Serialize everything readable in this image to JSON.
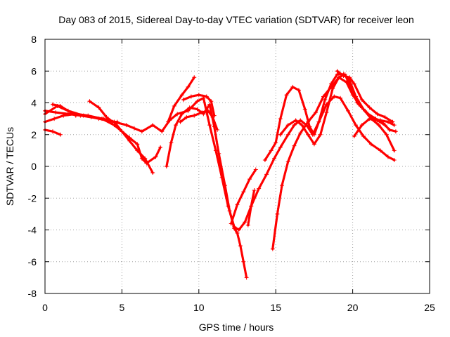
{
  "chart_data": {
    "type": "scatter",
    "title": "Day 083 of 2015, Sidereal Day-to-day VTEC variation (SDTVAR) for receiver leon",
    "xlabel": "GPS time / hours",
    "ylabel": "SDTVAR / TECUs",
    "xlim": [
      0,
      25
    ],
    "ylim": [
      -8,
      8
    ],
    "xticks": [
      "0",
      "5",
      "10",
      "15",
      "20",
      "25"
    ],
    "yticks": [
      "-8",
      "-6",
      "-4",
      "-2",
      "0",
      "2",
      "4",
      "6",
      "8"
    ],
    "grid": true,
    "marker": "plus",
    "color": "#ff0000",
    "series": [
      {
        "points": [
          [
            0.0,
            3.3
          ],
          [
            0.8,
            3.8
          ],
          [
            1.5,
            3.5
          ],
          [
            2.5,
            3.2
          ],
          [
            3.5,
            3.0
          ],
          [
            4.5,
            2.8
          ],
          [
            5.3,
            2.6
          ],
          [
            5.8,
            2.4
          ],
          [
            6.3,
            2.2
          ],
          [
            7.0,
            2.6
          ],
          [
            7.6,
            2.2
          ],
          [
            8.1,
            2.9
          ],
          [
            8.6,
            3.3
          ],
          [
            9.3,
            3.5
          ],
          [
            9.9,
            4.1
          ],
          [
            10.3,
            4.3
          ],
          [
            10.7,
            2.6
          ],
          [
            11.1,
            1.0
          ],
          [
            11.5,
            -0.7
          ],
          [
            11.9,
            -2.5
          ],
          [
            12.3,
            -3.8
          ],
          [
            12.6,
            -4.0
          ],
          [
            13.0,
            -3.5
          ],
          [
            13.4,
            -2.5
          ],
          [
            13.9,
            -1.4
          ],
          [
            14.4,
            -0.5
          ],
          [
            14.9,
            0.5
          ],
          [
            15.3,
            1.2
          ],
          [
            15.8,
            2.0
          ],
          [
            16.2,
            2.6
          ],
          [
            16.6,
            2.9
          ],
          [
            17.0,
            2.6
          ],
          [
            17.4,
            2.0
          ],
          [
            17.8,
            2.8
          ],
          [
            18.3,
            3.9
          ],
          [
            18.8,
            4.4
          ],
          [
            19.2,
            4.3
          ],
          [
            19.7,
            3.5
          ],
          [
            20.2,
            2.6
          ],
          [
            20.7,
            1.9
          ],
          [
            21.2,
            1.4
          ],
          [
            21.8,
            1.0
          ],
          [
            22.3,
            0.6
          ],
          [
            22.7,
            0.4
          ]
        ]
      },
      {
        "points": [
          [
            0.0,
            2.8
          ],
          [
            0.6,
            3.0
          ],
          [
            1.2,
            3.2
          ],
          [
            2.0,
            3.3
          ],
          [
            2.8,
            3.2
          ],
          [
            3.7,
            3.0
          ],
          [
            4.5,
            2.6
          ],
          [
            5.0,
            2.2
          ],
          [
            5.5,
            1.6
          ],
          [
            6.0,
            1.0
          ],
          [
            6.5,
            0.5
          ],
          [
            7.0,
            -0.4
          ]
        ]
      },
      {
        "points": [
          [
            0.0,
            3.5
          ],
          [
            0.7,
            3.4
          ],
          [
            1.5,
            3.3
          ],
          [
            2.3,
            3.2
          ],
          [
            3.0,
            3.1
          ],
          [
            3.8,
            3.0
          ],
          [
            4.5,
            2.8
          ],
          [
            5.0,
            2.2
          ],
          [
            5.5,
            1.8
          ],
          [
            6.0,
            1.4
          ],
          [
            6.3,
            0.5
          ],
          [
            6.6,
            0.2
          ],
          [
            7.2,
            0.6
          ],
          [
            7.5,
            1.2
          ]
        ]
      },
      {
        "points": [
          [
            2.9,
            4.1
          ],
          [
            3.5,
            3.7
          ],
          [
            4.0,
            3.1
          ],
          [
            4.4,
            2.8
          ],
          [
            4.7,
            2.8
          ]
        ]
      },
      {
        "points": [
          [
            8.0,
            2.8
          ],
          [
            8.4,
            3.8
          ],
          [
            8.9,
            4.5
          ],
          [
            9.3,
            5.0
          ],
          [
            9.7,
            5.6
          ]
        ]
      },
      {
        "points": [
          [
            7.9,
            0.0
          ],
          [
            8.2,
            1.5
          ],
          [
            8.5,
            2.6
          ],
          [
            8.9,
            3.3
          ],
          [
            9.4,
            3.7
          ],
          [
            9.9,
            3.6
          ],
          [
            10.3,
            3.3
          ],
          [
            10.7,
            3.9
          ],
          [
            11.0,
            2.5
          ],
          [
            11.3,
            0.8
          ],
          [
            11.7,
            -1.2
          ],
          [
            12.0,
            -2.8
          ],
          [
            12.3,
            -3.9
          ],
          [
            12.5,
            -4.2
          ],
          [
            12.7,
            -5.0
          ],
          [
            12.9,
            -6.0
          ],
          [
            13.1,
            -7.0
          ]
        ]
      },
      {
        "points": [
          [
            8.8,
            2.8
          ],
          [
            9.2,
            3.1
          ],
          [
            9.7,
            3.2
          ],
          [
            10.2,
            3.4
          ],
          [
            10.6,
            3.5
          ],
          [
            10.9,
            3.1
          ],
          [
            11.2,
            2.3
          ]
        ]
      },
      {
        "points": [
          [
            9.0,
            4.2
          ],
          [
            9.5,
            4.4
          ],
          [
            10.0,
            4.5
          ],
          [
            10.5,
            4.4
          ],
          [
            10.8,
            4.1
          ],
          [
            11.0,
            3.2
          ]
        ]
      },
      {
        "points": [
          [
            12.1,
            -3.6
          ],
          [
            12.5,
            -2.4
          ],
          [
            12.9,
            -1.6
          ],
          [
            13.3,
            -0.8
          ],
          [
            13.7,
            -0.2
          ]
        ]
      },
      {
        "points": [
          [
            13.2,
            -3.7
          ],
          [
            13.4,
            -2.5
          ],
          [
            13.6,
            -1.5
          ]
        ]
      },
      {
        "points": [
          [
            14.8,
            -5.2
          ],
          [
            15.1,
            -3.0
          ],
          [
            15.4,
            -1.2
          ],
          [
            15.8,
            0.3
          ],
          [
            16.2,
            1.3
          ],
          [
            16.6,
            2.1
          ],
          [
            17.1,
            2.8
          ],
          [
            17.6,
            3.4
          ],
          [
            18.1,
            4.4
          ],
          [
            18.6,
            5.0
          ],
          [
            19.1,
            5.6
          ],
          [
            19.6,
            5.3
          ],
          [
            20.0,
            4.5
          ],
          [
            20.5,
            3.8
          ],
          [
            21.0,
            3.3
          ],
          [
            21.5,
            3.0
          ],
          [
            22.0,
            2.7
          ],
          [
            22.4,
            2.3
          ],
          [
            22.8,
            2.2
          ]
        ]
      },
      {
        "points": [
          [
            14.3,
            0.4
          ],
          [
            14.7,
            1.0
          ],
          [
            15.0,
            1.5
          ],
          [
            15.3,
            3.0
          ],
          [
            15.7,
            4.5
          ],
          [
            16.1,
            5.0
          ],
          [
            16.5,
            4.8
          ],
          [
            16.9,
            3.6
          ],
          [
            17.2,
            2.5
          ],
          [
            17.5,
            2.0
          ],
          [
            17.8,
            2.8
          ],
          [
            18.2,
            4.2
          ],
          [
            18.6,
            5.2
          ],
          [
            19.0,
            5.8
          ],
          [
            19.4,
            5.8
          ],
          [
            19.8,
            5.4
          ],
          [
            20.2,
            4.4
          ],
          [
            20.7,
            3.6
          ],
          [
            21.2,
            3.0
          ],
          [
            21.7,
            2.6
          ],
          [
            22.2,
            2.0
          ],
          [
            22.7,
            1.0
          ]
        ]
      },
      {
        "points": [
          [
            15.3,
            2.0
          ],
          [
            15.8,
            2.6
          ],
          [
            16.3,
            2.9
          ],
          [
            16.7,
            2.6
          ],
          [
            17.1,
            2.0
          ],
          [
            17.5,
            1.4
          ],
          [
            17.9,
            2.0
          ],
          [
            18.3,
            3.4
          ],
          [
            18.7,
            4.9
          ],
          [
            19.1,
            5.6
          ],
          [
            19.5,
            5.8
          ],
          [
            19.9,
            4.9
          ],
          [
            20.3,
            4.0
          ],
          [
            20.8,
            3.5
          ],
          [
            21.3,
            3.0
          ],
          [
            21.8,
            2.9
          ],
          [
            22.3,
            2.8
          ],
          [
            22.7,
            2.6
          ]
        ]
      },
      {
        "points": [
          [
            19.0,
            6.0
          ],
          [
            19.4,
            5.7
          ],
          [
            19.8,
            5.6
          ],
          [
            20.1,
            5.2
          ],
          [
            20.6,
            4.2
          ],
          [
            21.1,
            3.7
          ],
          [
            21.6,
            3.3
          ],
          [
            22.1,
            3.1
          ],
          [
            22.6,
            2.8
          ]
        ]
      },
      {
        "points": [
          [
            0.0,
            2.3
          ],
          [
            0.5,
            2.2
          ],
          [
            1.0,
            2.0
          ]
        ]
      },
      {
        "points": [
          [
            0.5,
            3.9
          ],
          [
            1.0,
            3.8
          ],
          [
            1.5,
            3.5
          ],
          [
            2.0,
            3.2
          ]
        ]
      },
      {
        "points": [
          [
            20.1,
            1.9
          ],
          [
            20.6,
            2.6
          ],
          [
            21.1,
            3.0
          ],
          [
            21.6,
            2.9
          ],
          [
            22.1,
            2.6
          ]
        ]
      }
    ]
  }
}
